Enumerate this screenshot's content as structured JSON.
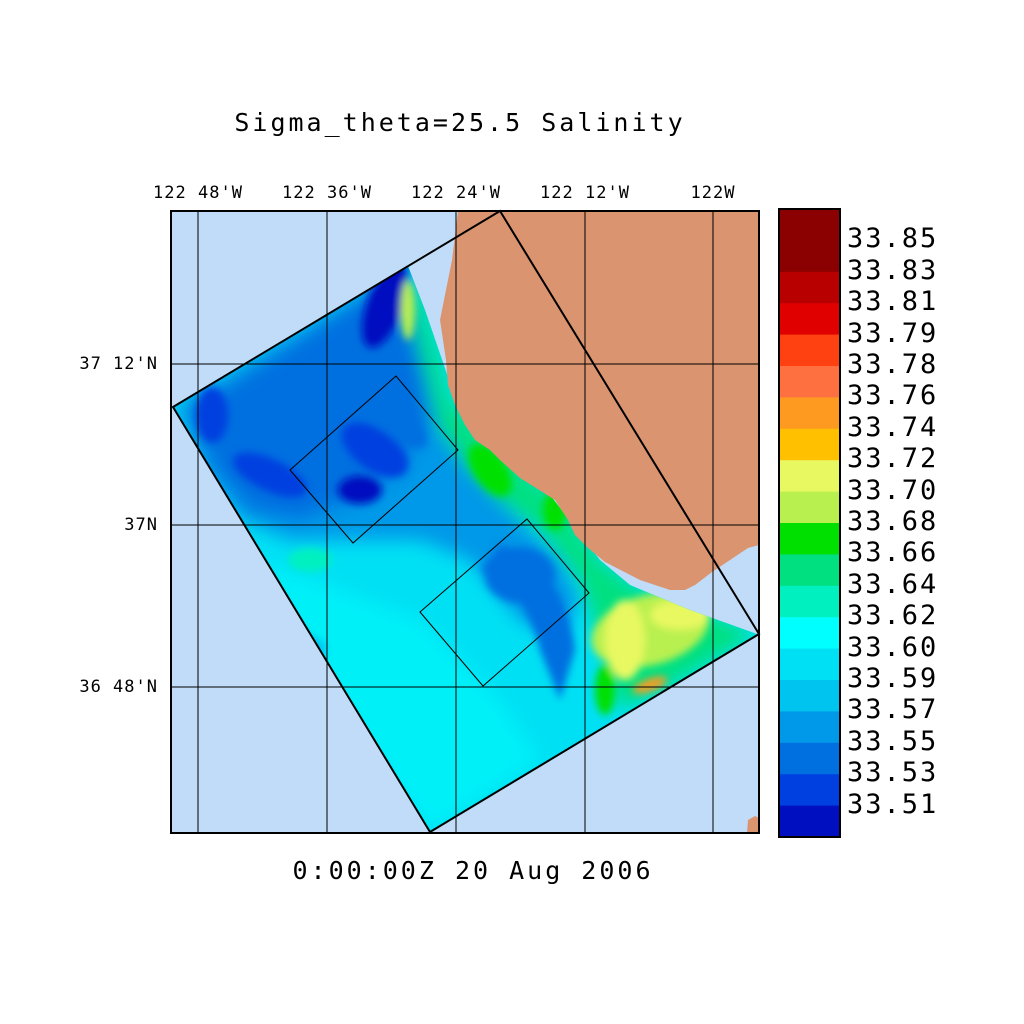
{
  "title": "Sigma_theta=25.5 Salinity",
  "timestamp": "0:00:00Z  20 Aug 2006",
  "lon_labels": [
    "122 48'W",
    "122 36'W",
    "122 24'W",
    "122 12'W",
    "122W"
  ],
  "lat_labels": [
    "37 12'N",
    "37N",
    "36 48'N"
  ],
  "colorbar": {
    "labels": [
      "33.85",
      "33.83",
      "33.81",
      "33.79",
      "33.78",
      "33.76",
      "33.74",
      "33.72",
      "33.70",
      "33.68",
      "33.66",
      "33.64",
      "33.62",
      "33.60",
      "33.59",
      "33.57",
      "33.55",
      "33.53",
      "33.51"
    ],
    "colors": [
      "#8b0000",
      "#b80000",
      "#e00000",
      "#ff4010",
      "#ff7040",
      "#ff9a20",
      "#ffc000",
      "#e8f860",
      "#b8f050",
      "#00e000",
      "#00e080",
      "#00f0c0",
      "#00ffff",
      "#00e0f4",
      "#00c4f0",
      "#0098e8",
      "#0070e0",
      "#0040e0",
      "#0010c0"
    ]
  },
  "colors": {
    "ocean_background": "#c0dcf8",
    "land": "#da9470",
    "outline": "#000000"
  }
}
